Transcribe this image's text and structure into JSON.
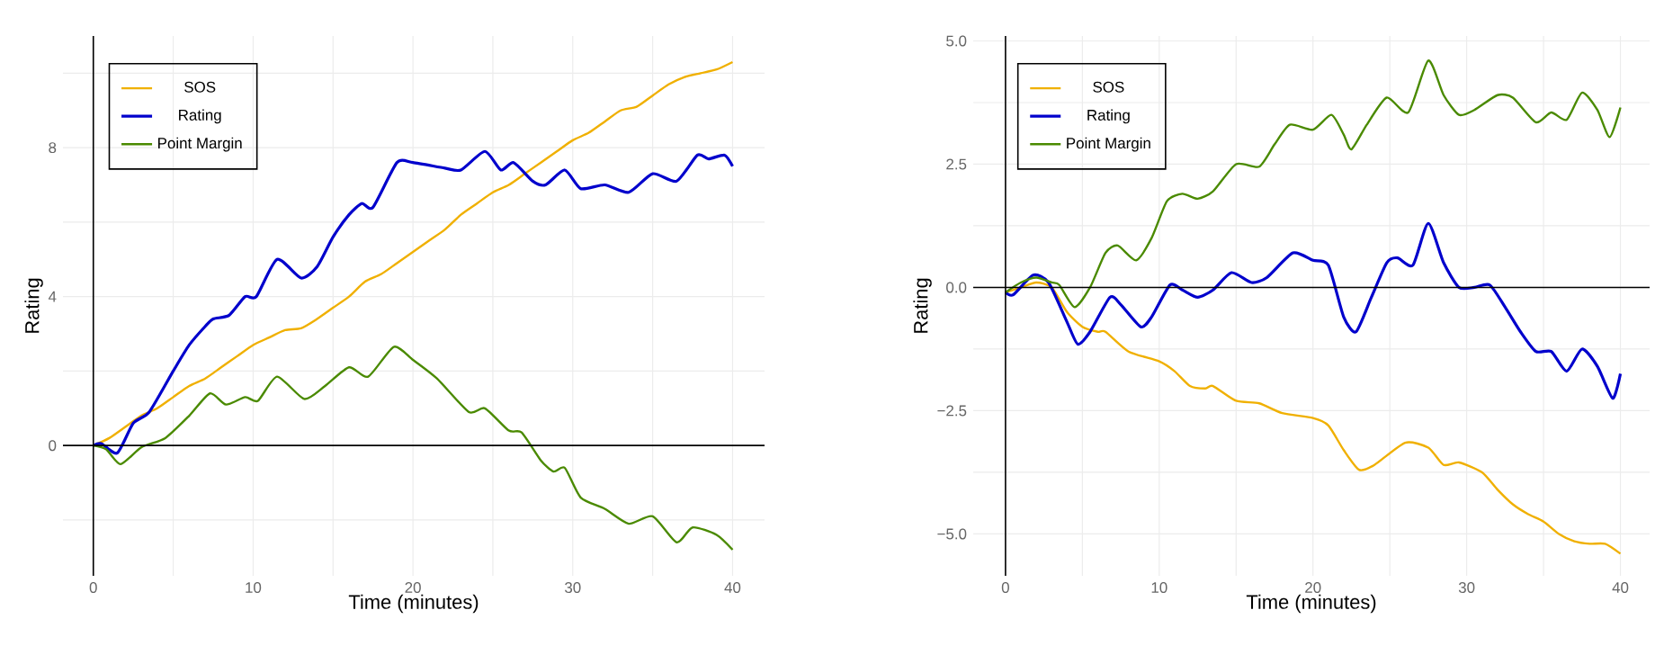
{
  "chart_data": [
    {
      "type": "line",
      "xlabel": "Time (minutes)",
      "ylabel": "Rating",
      "xlim": [
        -1.9,
        42
      ],
      "ylim": [
        -3.5,
        11
      ],
      "xticks": [
        0,
        {
          "value": 5,
          "label": null
        },
        10,
        {
          "value": 15,
          "label": null
        },
        20,
        {
          "value": 25,
          "label": null
        },
        30,
        {
          "value": 35,
          "label": null
        },
        40
      ],
      "yticks": [
        {
          "value": -2,
          "label": null
        },
        0,
        {
          "value": 2,
          "label": null
        },
        4,
        {
          "value": 6,
          "label": null
        },
        8,
        {
          "value": 10,
          "label": null
        }
      ],
      "grid": true,
      "legend": "top left",
      "line_style": "solid",
      "marker": "none",
      "ref_lines": [
        {
          "axis": "y",
          "value": 0,
          "color": "#000000"
        }
      ],
      "series": [
        {
          "name": "SOS",
          "color": "#f0b000",
          "x": [
            0,
            1,
            2,
            3,
            4,
            5,
            6,
            7,
            8,
            9,
            10,
            11,
            12,
            13,
            14,
            15,
            16,
            17,
            18,
            19,
            20,
            21,
            22,
            23,
            24,
            25,
            26,
            27,
            28,
            29,
            30,
            31,
            32,
            33,
            34,
            35,
            36,
            37,
            38,
            39,
            40
          ],
          "values": [
            0,
            0.2,
            0.5,
            0.8,
            1.0,
            1.3,
            1.6,
            1.8,
            2.1,
            2.4,
            2.7,
            2.9,
            3.1,
            3.15,
            3.4,
            3.7,
            4.0,
            4.4,
            4.6,
            4.9,
            5.2,
            5.5,
            5.8,
            6.2,
            6.5,
            6.8,
            7.0,
            7.3,
            7.6,
            7.9,
            8.2,
            8.4,
            8.7,
            9.0,
            9.1,
            9.4,
            9.7,
            9.9,
            10.0,
            10.1,
            10.3
          ]
        },
        {
          "name": "Rating",
          "color": "#0000cc",
          "x": [
            0,
            0.5,
            1.5,
            2.5,
            3.5,
            5,
            6,
            7,
            7.5,
            8.5,
            9.5,
            10.2,
            11.5,
            13,
            14,
            15,
            16,
            16.8,
            17.5,
            19,
            20,
            22,
            23,
            24.5,
            25.5,
            26.3,
            27.5,
            28.3,
            29.5,
            30.5,
            32,
            33.5,
            35,
            36.5,
            37.8,
            38.5,
            39.5,
            40
          ],
          "values": [
            0,
            0.05,
            -0.2,
            0.6,
            0.9,
            2.0,
            2.7,
            3.2,
            3.4,
            3.5,
            4.0,
            4.0,
            5.0,
            4.5,
            4.8,
            5.6,
            6.2,
            6.5,
            6.4,
            7.6,
            7.6,
            7.45,
            7.4,
            7.9,
            7.4,
            7.6,
            7.1,
            7.0,
            7.4,
            6.9,
            7.0,
            6.8,
            7.3,
            7.1,
            7.8,
            7.7,
            7.8,
            7.5
          ]
        },
        {
          "name": "Point Margin",
          "color": "#4a8a00",
          "x": [
            0,
            0.8,
            1.7,
            3,
            4.5,
            6,
            7.3,
            8.3,
            9.5,
            10.3,
            11.5,
            13.2,
            14.5,
            16,
            17.2,
            18.8,
            20,
            21.5,
            23.5,
            24.5,
            26,
            26.8,
            28,
            28.8,
            29.5,
            30.5,
            32,
            33.5,
            35,
            36.5,
            37.5,
            39,
            40
          ],
          "values": [
            0,
            -0.1,
            -0.5,
            -0.05,
            0.2,
            0.8,
            1.4,
            1.1,
            1.3,
            1.2,
            1.85,
            1.25,
            1.6,
            2.1,
            1.85,
            2.65,
            2.3,
            1.8,
            0.9,
            1.0,
            0.4,
            0.35,
            -0.4,
            -0.7,
            -0.6,
            -1.4,
            -1.7,
            -2.1,
            -1.9,
            -2.6,
            -2.2,
            -2.4,
            -2.8
          ]
        }
      ]
    },
    {
      "type": "line",
      "xlabel": "Time (minutes)",
      "ylabel": "Rating",
      "xlim": [
        -2.1,
        41.9
      ],
      "ylim": [
        -5.85,
        5.1
      ],
      "xticks": [
        0,
        {
          "value": 5,
          "label": null
        },
        10,
        {
          "value": 15,
          "label": null
        },
        20,
        {
          "value": 25,
          "label": null
        },
        30,
        {
          "value": 35,
          "label": null
        },
        40
      ],
      "yticks": [
        {
          "value": -5,
          "label": "−5.0"
        },
        {
          "value": -3.75,
          "label": null
        },
        {
          "value": -2.5,
          "label": "−2.5"
        },
        {
          "value": -1.25,
          "label": null
        },
        {
          "value": 0,
          "label": "0.0"
        },
        {
          "value": 1.25,
          "label": null
        },
        {
          "value": 2.5,
          "label": "2.5"
        },
        {
          "value": 3.75,
          "label": null
        },
        {
          "value": 5,
          "label": "5.0"
        }
      ],
      "grid": true,
      "legend": "top left",
      "line_style": "solid",
      "marker": "none",
      "ref_lines": [
        {
          "axis": "y",
          "value": 0,
          "color": "#000000"
        }
      ],
      "series": [
        {
          "name": "SOS",
          "color": "#f0b000",
          "x": [
            0,
            1,
            2,
            3,
            4,
            5,
            6,
            6.5,
            8,
            10,
            11,
            12,
            13,
            13.5,
            15,
            16.5,
            18,
            20,
            21,
            22,
            23,
            24,
            26,
            27.5,
            28.5,
            29.5,
            31,
            32,
            33,
            34,
            35,
            36,
            37,
            38,
            39,
            40
          ],
          "values": [
            -0.1,
            0.0,
            0.1,
            0.0,
            -0.5,
            -0.8,
            -0.9,
            -0.9,
            -1.3,
            -1.5,
            -1.7,
            -2.0,
            -2.05,
            -2.0,
            -2.3,
            -2.35,
            -2.55,
            -2.65,
            -2.8,
            -3.3,
            -3.7,
            -3.6,
            -3.15,
            -3.25,
            -3.6,
            -3.55,
            -3.75,
            -4.1,
            -4.4,
            -4.6,
            -4.75,
            -5.0,
            -5.15,
            -5.2,
            -5.2,
            -5.4
          ]
        },
        {
          "name": "Rating",
          "color": "#0000cc",
          "x": [
            0,
            0.5,
            1.8,
            2.8,
            4,
            4.7,
            5.5,
            6.8,
            7.5,
            8.8,
            9.5,
            10.7,
            11.5,
            12.5,
            13.5,
            14.7,
            16,
            17,
            18.7,
            20,
            21,
            22,
            22.8,
            23.8,
            24.8,
            25.5,
            26.5,
            27.5,
            28.5,
            29.5,
            30.5,
            31.5,
            32.5,
            33.5,
            34.5,
            35.5,
            36.5,
            37.5,
            38.5,
            39.5,
            40
          ],
          "values": [
            -0.1,
            -0.15,
            0.25,
            0.1,
            -0.7,
            -1.15,
            -0.9,
            -0.2,
            -0.35,
            -0.8,
            -0.6,
            0.05,
            -0.05,
            -0.2,
            -0.05,
            0.3,
            0.1,
            0.2,
            0.7,
            0.55,
            0.45,
            -0.6,
            -0.9,
            -0.2,
            0.5,
            0.6,
            0.45,
            1.3,
            0.5,
            0.0,
            0.0,
            0.05,
            -0.4,
            -0.9,
            -1.3,
            -1.3,
            -1.7,
            -1.25,
            -1.6,
            -2.25,
            -1.75
          ]
        },
        {
          "name": "Point Margin",
          "color": "#4a8a00",
          "x": [
            0,
            1,
            2,
            3,
            3.5,
            4.5,
            5.5,
            6.5,
            7.3,
            8.5,
            9.5,
            10.5,
            11.5,
            12.5,
            13.5,
            15,
            16.5,
            17.5,
            18.5,
            20,
            21.2,
            22,
            22.5,
            23.5,
            24.8,
            26.2,
            27.5,
            28.5,
            29.5,
            30.5,
            32,
            33,
            34.5,
            35.5,
            36.5,
            37.5,
            38.5,
            39.3,
            40
          ],
          "values": [
            -0.1,
            0.1,
            0.2,
            0.1,
            0.05,
            -0.4,
            0.0,
            0.7,
            0.85,
            0.55,
            1.0,
            1.75,
            1.9,
            1.8,
            1.95,
            2.5,
            2.45,
            2.9,
            3.3,
            3.2,
            3.5,
            3.1,
            2.8,
            3.3,
            3.85,
            3.55,
            4.6,
            3.9,
            3.5,
            3.6,
            3.9,
            3.85,
            3.35,
            3.55,
            3.4,
            3.95,
            3.6,
            3.05,
            3.65
          ]
        }
      ]
    }
  ]
}
